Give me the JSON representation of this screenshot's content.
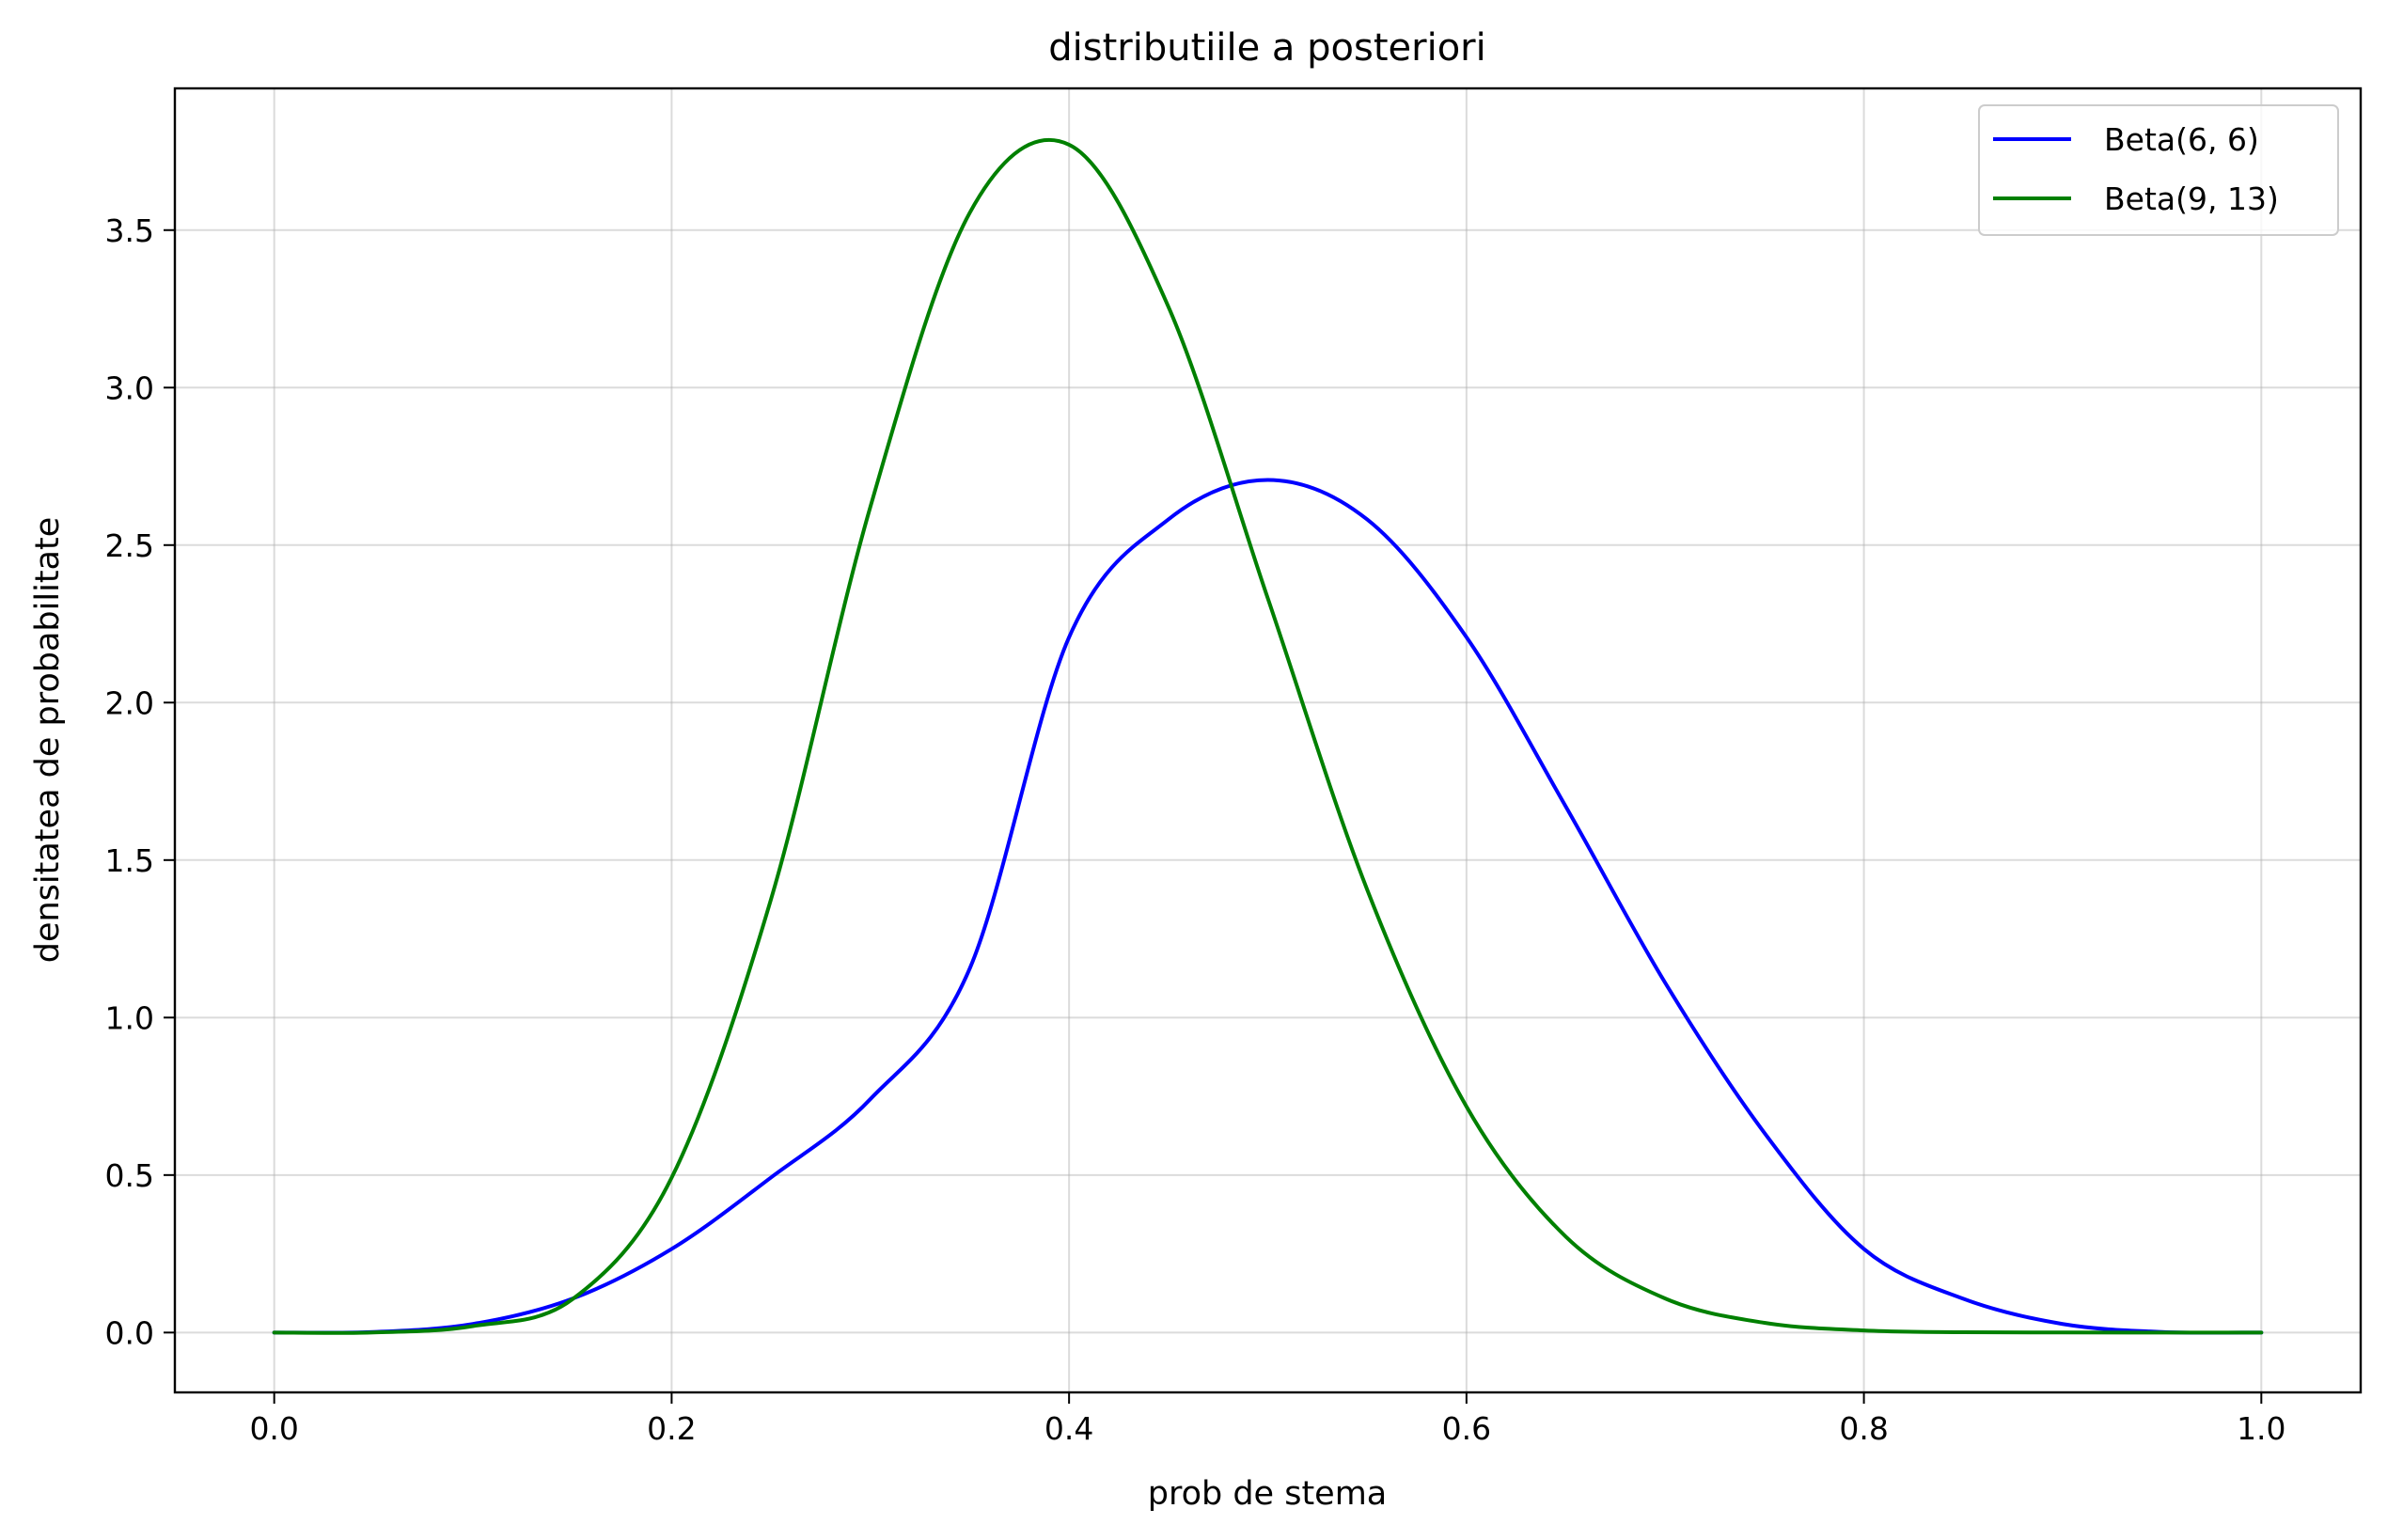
{
  "chart_data": {
    "type": "line",
    "title": "distributiile a posteriori",
    "xlabel": "prob de stema",
    "ylabel": "densitatea de probabilitate",
    "xlim": [
      -0.05,
      1.05
    ],
    "ylim": [
      -0.19,
      3.95
    ],
    "xticks": [
      0.0,
      0.2,
      0.4,
      0.6,
      0.8,
      1.0
    ],
    "xtick_labels": [
      "0.0",
      "0.2",
      "0.4",
      "0.6",
      "0.8",
      "1.0"
    ],
    "yticks": [
      0.0,
      0.5,
      1.0,
      1.5,
      2.0,
      2.5,
      3.0,
      3.5
    ],
    "ytick_labels": [
      "0.0",
      "0.5",
      "1.0",
      "1.5",
      "2.0",
      "2.5",
      "3.0",
      "3.5"
    ],
    "grid": true,
    "legend_position": "top-right",
    "series": [
      {
        "name": "Beta(6, 6)",
        "color": "#0000ff",
        "x": [
          0.0,
          0.05,
          0.1,
          0.15,
          0.2,
          0.25,
          0.3,
          0.35,
          0.4,
          0.45,
          0.5,
          0.55,
          0.6,
          0.65,
          0.7,
          0.75,
          0.8,
          0.85,
          0.9,
          0.95,
          1.0
        ],
        "y": [
          0.0,
          0.0018,
          0.0272,
          0.1072,
          0.2654,
          0.4923,
          0.7411,
          1.1553,
          2.2075,
          2.5815,
          2.707,
          2.5815,
          2.2075,
          1.6696,
          1.1103,
          0.6334,
          0.2654,
          0.1072,
          0.0272,
          0.0018,
          0.0
        ]
      },
      {
        "name": "Beta(9, 13)",
        "color": "#008000",
        "x": [
          0.0,
          0.05,
          0.1,
          0.15,
          0.2,
          0.25,
          0.3,
          0.35,
          0.4,
          0.45,
          0.5,
          0.55,
          0.6,
          0.65,
          0.7,
          0.75,
          0.8,
          0.85,
          0.9,
          0.95,
          1.0
        ],
        "y": [
          0.0,
          0.0003,
          0.0205,
          0.1055,
          0.4916,
          1.3755,
          2.6212,
          3.5548,
          3.7712,
          3.2565,
          2.3314,
          1.4066,
          0.7175,
          0.3043,
          0.1081,
          0.0308,
          0.0066,
          0.0009,
          0.0001,
          0.0,
          0.0
        ]
      }
    ]
  }
}
